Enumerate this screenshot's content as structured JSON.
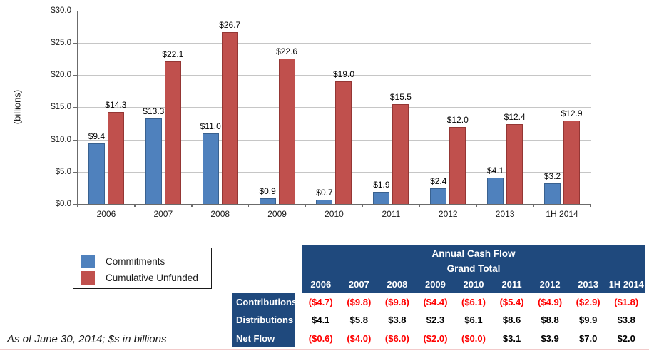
{
  "colors": {
    "commitments_blue": "#4f81bd",
    "commitments_blue_border": "#39618f",
    "unfunded_red": "#c0504d",
    "unfunded_red_border": "#943634",
    "table_header_navy": "#1f497d",
    "negative_value_red": "#ff0000",
    "gridline_gray": "#c6c6c6",
    "axis_gray": "#6b6b6b"
  },
  "chart_data": {
    "type": "bar",
    "title": "",
    "xlabel": "",
    "ylabel": "(billions)",
    "ylim": [
      0,
      30
    ],
    "ytick_step": 5,
    "ytick_labels": [
      "$0.0",
      "$5.0",
      "$10.0",
      "$15.0",
      "$20.0",
      "$25.0",
      "$30.0"
    ],
    "grid": true,
    "legend_position": "bottom-left",
    "categories": [
      "2006",
      "2007",
      "2008",
      "2009",
      "2010",
      "2011",
      "2012",
      "2013",
      "1H 2014"
    ],
    "series": [
      {
        "name": "Commitments",
        "color": "#4f81bd",
        "values": [
          9.4,
          13.3,
          11.0,
          0.9,
          0.7,
          1.9,
          2.4,
          4.1,
          3.2
        ],
        "labels": [
          "$9.4",
          "$13.3",
          "$11.0",
          "$0.9",
          "$0.7",
          "$1.9",
          "$2.4",
          "$4.1",
          "$3.2"
        ]
      },
      {
        "name": "Cumulative Unfunded",
        "color": "#c0504d",
        "values": [
          14.3,
          22.1,
          26.7,
          22.6,
          19.0,
          15.5,
          12.0,
          12.4,
          12.9
        ],
        "labels": [
          "$14.3",
          "$22.1",
          "$26.7",
          "$22.6",
          "$19.0",
          "$15.5",
          "$12.0",
          "$12.4",
          "$12.9"
        ]
      }
    ]
  },
  "legend": {
    "items": [
      {
        "label": "Commitments",
        "color": "#4f81bd"
      },
      {
        "label": "Cumulative Unfunded",
        "color": "#c0504d"
      }
    ]
  },
  "table": {
    "title_line1": "Annual Cash Flow",
    "title_line2": "Grand Total",
    "columns": [
      "2006",
      "2007",
      "2008",
      "2009",
      "2010",
      "2011",
      "2012",
      "2013",
      "1H 2014"
    ],
    "rows": [
      {
        "label": "Contributions",
        "values": [
          "($4.7)",
          "($9.8)",
          "($9.8)",
          "($4.4)",
          "($6.1)",
          "($5.4)",
          "($4.9)",
          "($2.9)",
          "($1.8)"
        ]
      },
      {
        "label": "Distributions",
        "values": [
          "$4.1",
          "$5.8",
          "$3.8",
          "$2.3",
          "$6.1",
          "$8.6",
          "$8.8",
          "$9.9",
          "$3.8"
        ]
      },
      {
        "label": "Net Flow",
        "values": [
          "($0.6)",
          "($4.0)",
          "($6.0)",
          "($2.0)",
          "($0.0)",
          "$3.1",
          "$3.9",
          "$7.0",
          "$2.0"
        ]
      }
    ]
  },
  "footnote": "As of June 30, 2014; $s in billions"
}
